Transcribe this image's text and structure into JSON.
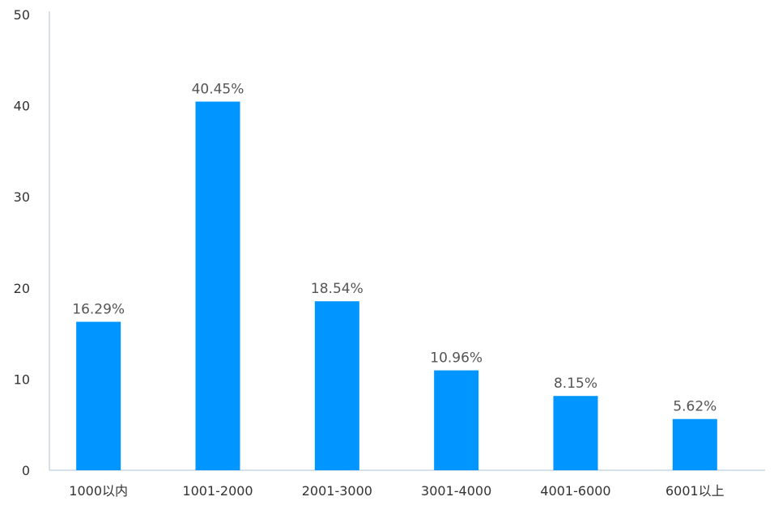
{
  "chart_data": {
    "type": "bar",
    "title": "",
    "xlabel": "",
    "ylabel": "",
    "categories": [
      "1000以内",
      "1001-2000",
      "2001-3000",
      "3001-4000",
      "4001-6000",
      "6001以上"
    ],
    "values": [
      16.29,
      40.45,
      18.54,
      10.96,
      8.15,
      5.62
    ],
    "value_labels": [
      "16.29%",
      "40.45%",
      "18.54%",
      "10.96%",
      "8.15%",
      "5.62%"
    ],
    "ylim": [
      0,
      50
    ],
    "yticks": [
      "0",
      "10",
      "20",
      "30",
      "40",
      "50"
    ],
    "grid": false,
    "legend": "none",
    "bar_color": "#0095ff",
    "axis_color": "#c9d6e4"
  }
}
